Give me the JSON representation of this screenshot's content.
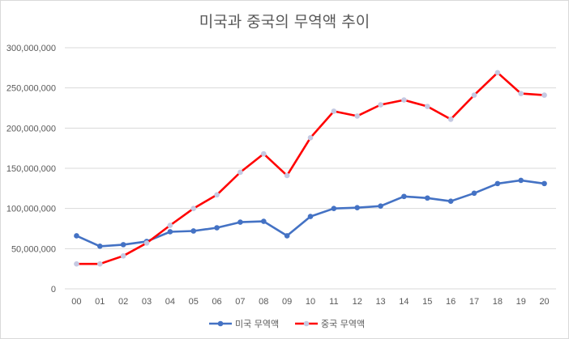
{
  "chart_data": {
    "type": "line",
    "title": "미국과 중국의 무역액 추이",
    "categories": [
      "00",
      "01",
      "02",
      "03",
      "04",
      "05",
      "06",
      "07",
      "08",
      "09",
      "10",
      "11",
      "12",
      "13",
      "14",
      "15",
      "16",
      "17",
      "18",
      "19",
      "20"
    ],
    "y_ticks": [
      "0",
      "50,000,000",
      "100,000,000",
      "150,000,000",
      "200,000,000",
      "250,000,000",
      "300,000,000"
    ],
    "ylim": [
      0,
      300000000
    ],
    "grid": true,
    "legend": "bottom",
    "series": [
      {
        "name": "미국 무역액",
        "color": "#4472c4",
        "marker": "#4472c4",
        "values": [
          66000000,
          53000000,
          55000000,
          59000000,
          71000000,
          72000000,
          76000000,
          83000000,
          84000000,
          66000000,
          90000000,
          100000000,
          101000000,
          103000000,
          115000000,
          113000000,
          109000000,
          119000000,
          131000000,
          135000000,
          131000000
        ]
      },
      {
        "name": "중국 무역액",
        "color": "#ff0000",
        "marker": "#c5c9e2",
        "values": [
          31000000,
          31000000,
          41000000,
          57000000,
          79000000,
          100000000,
          117000000,
          145000000,
          168000000,
          141000000,
          188000000,
          221000000,
          215000000,
          229000000,
          235000000,
          227000000,
          211000000,
          241000000,
          269000000,
          243000000,
          241000000
        ]
      }
    ]
  }
}
